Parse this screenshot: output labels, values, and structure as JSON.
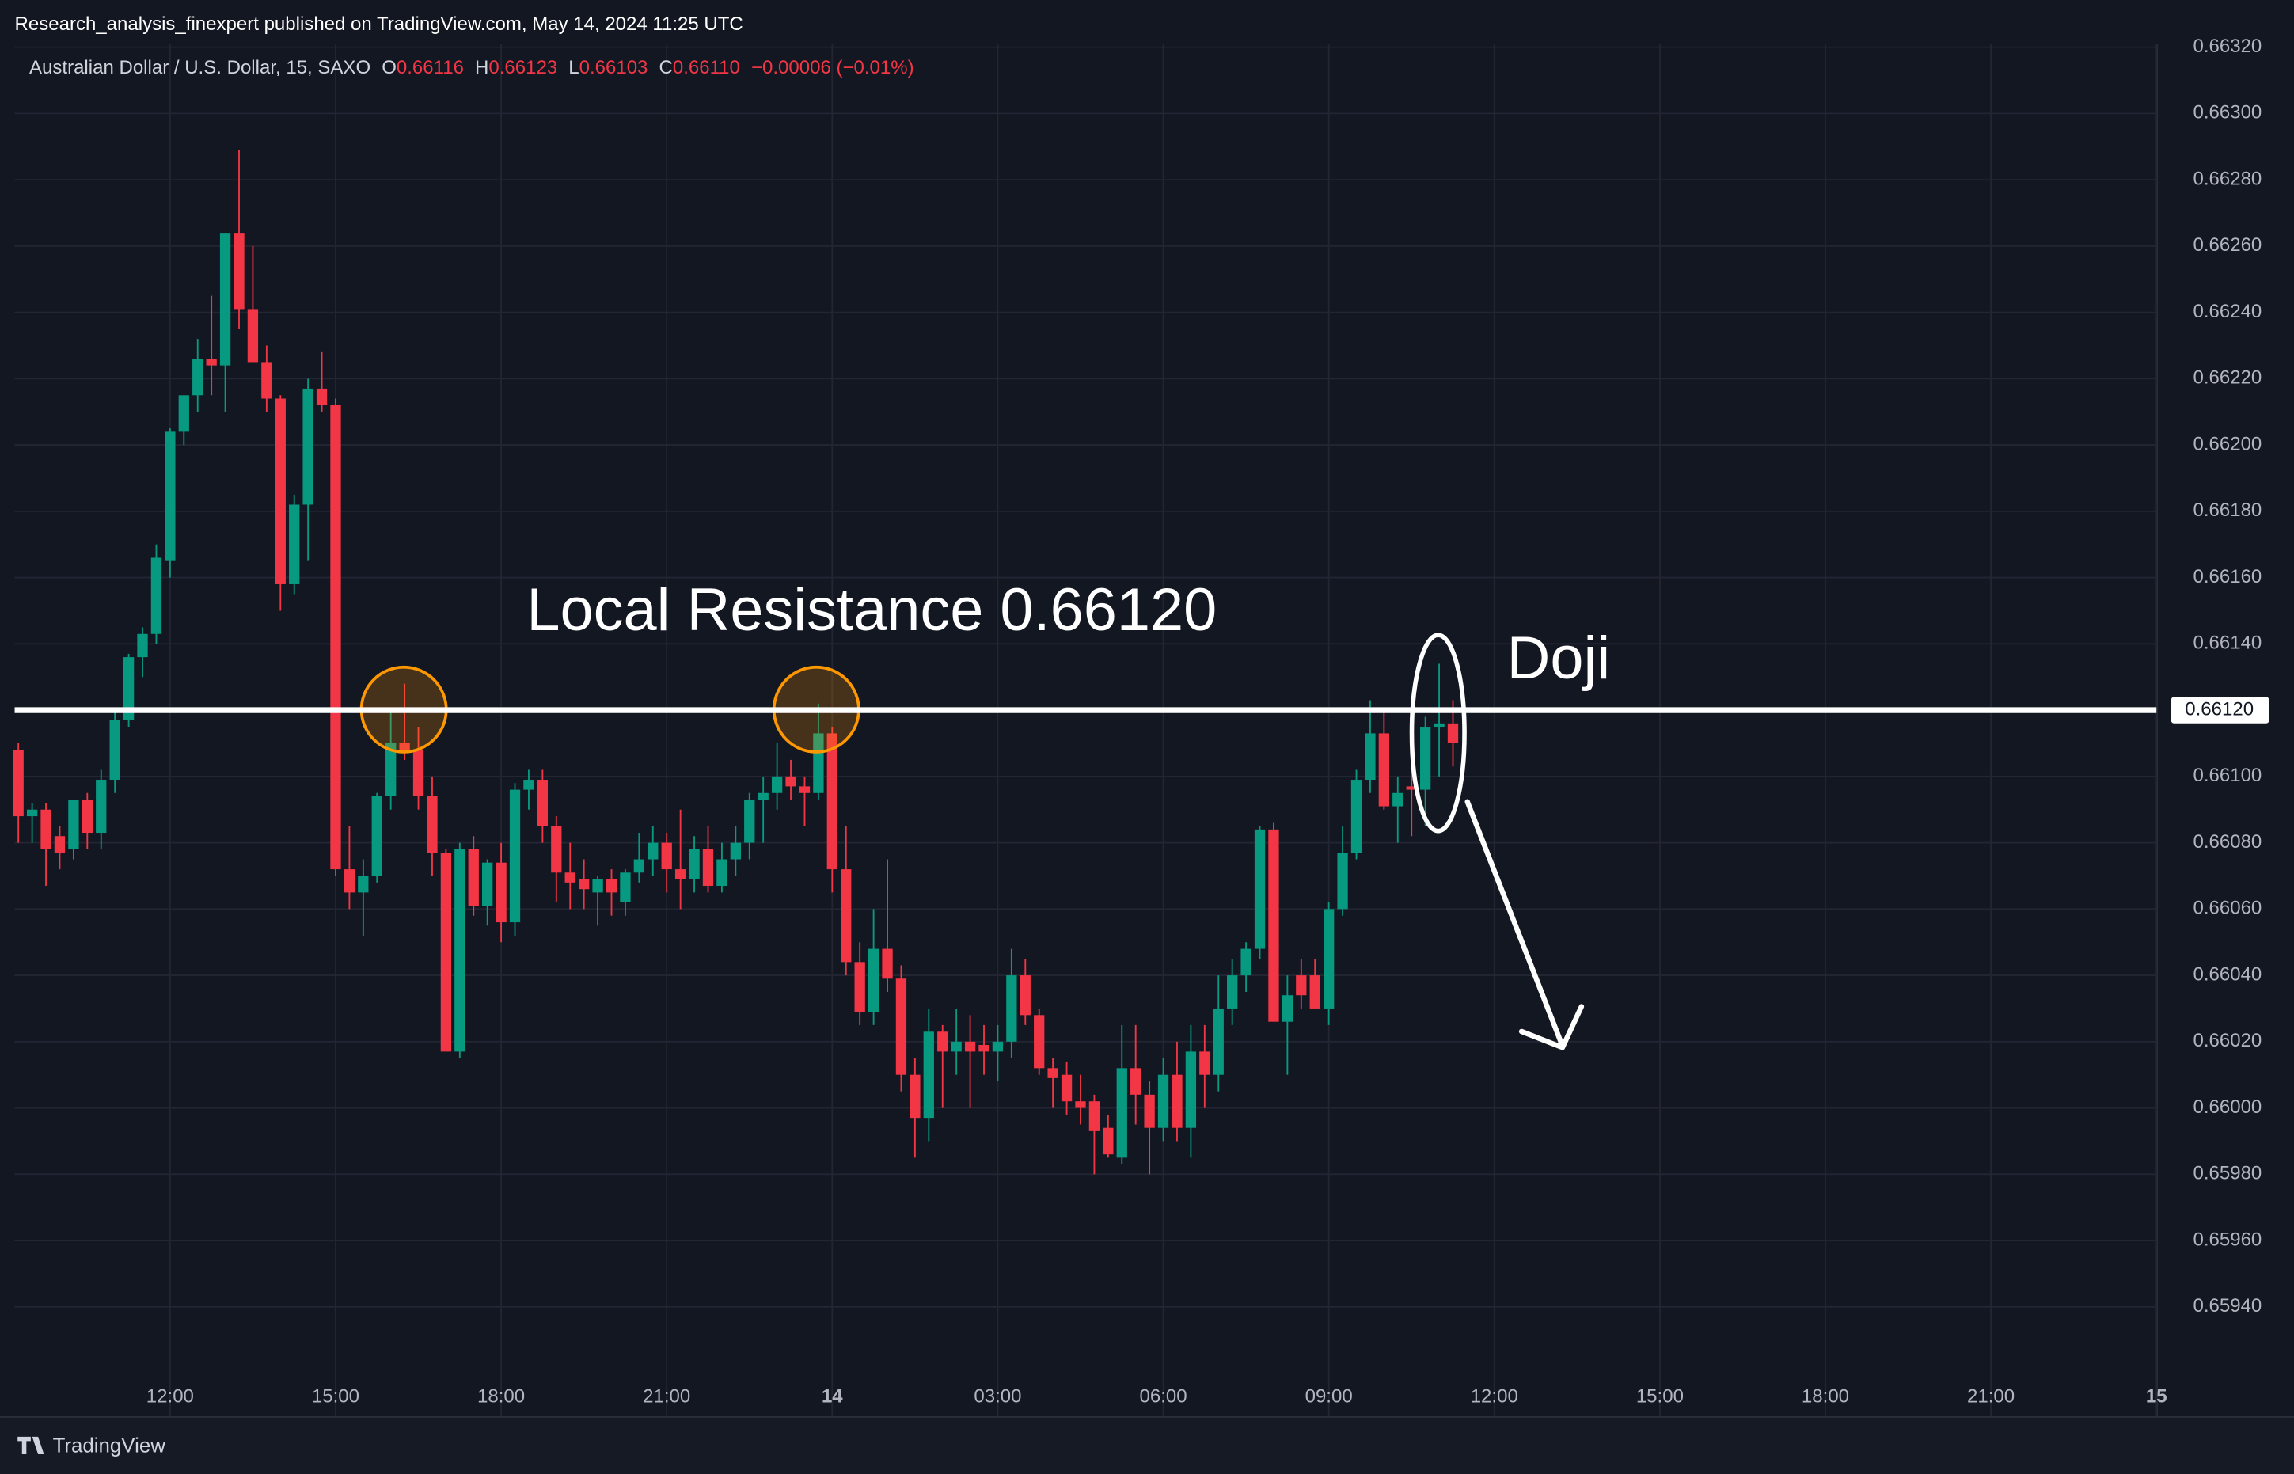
{
  "header": {
    "published": "Research_analysis_finexpert published on TradingView.com, May 14, 2024 11:25 UTC"
  },
  "legend": {
    "symbol": "Australian Dollar / U.S. Dollar, 15, SAXO",
    "open_label": "O",
    "open": "0.66116",
    "high_label": "H",
    "high": "0.66123",
    "low_label": "L",
    "low": "0.66103",
    "close_label": "C",
    "close": "0.66110",
    "change": "−0.00006 (−0.01%)"
  },
  "footer": {
    "brand": "TradingView"
  },
  "chart_data": {
    "type": "candlestick",
    "up_color": "#089981",
    "down_color": "#f23645",
    "grid": true,
    "x": [
      "13 09:15",
      "13 09:30",
      "13 09:45",
      "13 10:00",
      "13 10:15",
      "13 10:30",
      "13 10:45",
      "13 11:00",
      "13 11:15",
      "13 11:30",
      "13 11:45",
      "13 12:00",
      "13 12:15",
      "13 12:30",
      "13 12:45",
      "13 13:00",
      "13 13:15",
      "13 13:30",
      "13 13:45",
      "13 14:00",
      "13 14:15",
      "13 14:30",
      "13 14:45",
      "13 15:00",
      "13 15:15",
      "13 15:30",
      "13 15:45",
      "13 16:00",
      "13 16:15",
      "13 16:30",
      "13 16:45",
      "13 17:00",
      "13 17:15",
      "13 17:30",
      "13 17:45",
      "13 18:00",
      "13 18:15",
      "13 18:30",
      "13 18:45",
      "13 19:00",
      "13 19:15",
      "13 19:30",
      "13 19:45",
      "13 20:00",
      "13 20:15",
      "13 20:30",
      "13 20:45",
      "13 21:00",
      "13 21:15",
      "13 21:30",
      "13 21:45",
      "13 22:00",
      "13 22:15",
      "13 22:30",
      "13 22:45",
      "13 23:00",
      "13 23:15",
      "13 23:30",
      "13 23:45",
      "14 00:00",
      "14 00:15",
      "14 00:30",
      "14 00:45",
      "14 01:00",
      "14 01:15",
      "14 01:30",
      "14 01:45",
      "14 02:00",
      "14 02:15",
      "14 02:30",
      "14 02:45",
      "14 03:00",
      "14 03:15",
      "14 03:30",
      "14 03:45",
      "14 04:00",
      "14 04:15",
      "14 04:30",
      "14 04:45",
      "14 05:00",
      "14 05:15",
      "14 05:30",
      "14 05:45",
      "14 06:00",
      "14 06:15",
      "14 06:30",
      "14 06:45",
      "14 07:00",
      "14 07:15",
      "14 07:30",
      "14 07:45",
      "14 08:00",
      "14 08:15",
      "14 08:30",
      "14 08:45",
      "14 09:00",
      "14 09:15",
      "14 09:30",
      "14 09:45",
      "14 10:00",
      "14 10:15",
      "14 10:30",
      "14 10:45",
      "14 11:00",
      "14 11:15"
    ],
    "open": [
      0.66108,
      0.66088,
      0.6609,
      0.66082,
      0.66078,
      0.66093,
      0.66083,
      0.66099,
      0.66117,
      0.66136,
      0.66143,
      0.66165,
      0.66204,
      0.66215,
      0.66226,
      0.66224,
      0.66264,
      0.66241,
      0.66225,
      0.66214,
      0.66158,
      0.66182,
      0.66217,
      0.66212,
      0.66072,
      0.66065,
      0.6607,
      0.66094,
      0.6611,
      0.66108,
      0.66094,
      0.66077,
      0.66017,
      0.66078,
      0.66061,
      0.66074,
      0.66056,
      0.66096,
      0.66099,
      0.66085,
      0.66071,
      0.66069,
      0.66065,
      0.66069,
      0.66062,
      0.66071,
      0.66075,
      0.6608,
      0.66072,
      0.66069,
      0.66078,
      0.66067,
      0.66075,
      0.6608,
      0.66093,
      0.66095,
      0.661,
      0.66097,
      0.66095,
      0.66113,
      0.66072,
      0.66044,
      0.66029,
      0.66048,
      0.66039,
      0.6601,
      0.65997,
      0.66023,
      0.66017,
      0.6602,
      0.66019,
      0.66017,
      0.6602,
      0.6604,
      0.66028,
      0.66012,
      0.6601,
      0.66002,
      0.66002,
      0.65994,
      0.65985,
      0.66012,
      0.66004,
      0.65994,
      0.6601,
      0.65994,
      0.66017,
      0.6601,
      0.6603,
      0.6604,
      0.66048,
      0.66084,
      0.66026,
      0.6604,
      0.6604,
      0.6603,
      0.6606,
      0.66077,
      0.66099,
      0.66113,
      0.66091,
      0.66097,
      0.66096,
      0.66115,
      0.66116
    ],
    "high": [
      0.6611,
      0.66092,
      0.66092,
      0.66085,
      0.66093,
      0.66095,
      0.66102,
      0.6612,
      0.66137,
      0.66145,
      0.6617,
      0.66205,
      0.66215,
      0.66232,
      0.66245,
      0.66264,
      0.66289,
      0.6626,
      0.6623,
      0.66215,
      0.66185,
      0.6622,
      0.66228,
      0.66214,
      0.66085,
      0.66075,
      0.66095,
      0.6612,
      0.66128,
      0.66115,
      0.661,
      0.66078,
      0.6608,
      0.66082,
      0.66075,
      0.6608,
      0.66098,
      0.66102,
      0.66102,
      0.66088,
      0.6608,
      0.66075,
      0.6607,
      0.66072,
      0.66072,
      0.66083,
      0.66085,
      0.66083,
      0.6609,
      0.66082,
      0.66085,
      0.6608,
      0.66085,
      0.66095,
      0.661,
      0.6611,
      0.66105,
      0.661,
      0.66122,
      0.66115,
      0.66085,
      0.6605,
      0.6606,
      0.66075,
      0.66043,
      0.66015,
      0.6603,
      0.66025,
      0.6603,
      0.66028,
      0.66025,
      0.66025,
      0.66048,
      0.66045,
      0.6603,
      0.66015,
      0.66014,
      0.6601,
      0.66004,
      0.65998,
      0.66025,
      0.66025,
      0.66008,
      0.66015,
      0.6602,
      0.66025,
      0.66025,
      0.6604,
      0.66045,
      0.6605,
      0.66085,
      0.66086,
      0.6604,
      0.66045,
      0.66045,
      0.66062,
      0.66085,
      0.66102,
      0.66123,
      0.6612,
      0.661,
      0.66105,
      0.66118,
      0.66134,
      0.66123
    ],
    "low": [
      0.6608,
      0.6608,
      0.66067,
      0.66072,
      0.66075,
      0.66078,
      0.66078,
      0.66095,
      0.66115,
      0.6613,
      0.6614,
      0.6616,
      0.662,
      0.6621,
      0.66215,
      0.6621,
      0.66235,
      0.66225,
      0.6621,
      0.6615,
      0.66155,
      0.66165,
      0.6621,
      0.6607,
      0.6606,
      0.66052,
      0.66068,
      0.6609,
      0.66105,
      0.6609,
      0.6607,
      0.66018,
      0.66015,
      0.66058,
      0.66055,
      0.6605,
      0.66052,
      0.6609,
      0.6608,
      0.66062,
      0.6606,
      0.6606,
      0.66055,
      0.66058,
      0.66058,
      0.66068,
      0.6607,
      0.66065,
      0.6606,
      0.66065,
      0.66065,
      0.66065,
      0.6607,
      0.66075,
      0.6608,
      0.6609,
      0.66093,
      0.66085,
      0.66093,
      0.66065,
      0.6604,
      0.66025,
      0.66025,
      0.66035,
      0.66005,
      0.65985,
      0.6599,
      0.66,
      0.6601,
      0.66,
      0.6601,
      0.66008,
      0.66015,
      0.66025,
      0.6601,
      0.66,
      0.65998,
      0.65995,
      0.6598,
      0.65985,
      0.65983,
      0.65995,
      0.6598,
      0.6599,
      0.6599,
      0.65985,
      0.66,
      0.66005,
      0.66025,
      0.66035,
      0.66045,
      0.66028,
      0.6601,
      0.6603,
      0.6603,
      0.66025,
      0.66058,
      0.66075,
      0.66095,
      0.6609,
      0.6608,
      0.66082,
      0.66085,
      0.661,
      0.66103
    ],
    "close": [
      0.66088,
      0.6609,
      0.66078,
      0.66077,
      0.66093,
      0.66083,
      0.66099,
      0.66117,
      0.66136,
      0.66143,
      0.66166,
      0.66204,
      0.66215,
      0.66226,
      0.66224,
      0.66264,
      0.66241,
      0.66225,
      0.66214,
      0.66158,
      0.66182,
      0.66217,
      0.66212,
      0.66072,
      0.66065,
      0.6607,
      0.66094,
      0.6611,
      0.66108,
      0.66094,
      0.66077,
      0.66017,
      0.66078,
      0.66061,
      0.66074,
      0.66056,
      0.66096,
      0.66099,
      0.66085,
      0.66071,
      0.66068,
      0.66066,
      0.66069,
      0.66065,
      0.66071,
      0.66075,
      0.6608,
      0.66072,
      0.66069,
      0.66078,
      0.66067,
      0.66075,
      0.6608,
      0.66093,
      0.66095,
      0.661,
      0.66097,
      0.66095,
      0.66113,
      0.66072,
      0.66044,
      0.66029,
      0.66048,
      0.66039,
      0.6601,
      0.65997,
      0.66023,
      0.66017,
      0.6602,
      0.66017,
      0.66017,
      0.6602,
      0.6604,
      0.66028,
      0.66012,
      0.66009,
      0.66002,
      0.66,
      0.65993,
      0.65986,
      0.66012,
      0.66004,
      0.65994,
      0.6601,
      0.65994,
      0.66017,
      0.6601,
      0.6603,
      0.6604,
      0.66048,
      0.66084,
      0.66026,
      0.66034,
      0.66034,
      0.6603,
      0.6606,
      0.66077,
      0.66099,
      0.66113,
      0.66091,
      0.66095,
      0.66096,
      0.66115,
      0.66116,
      0.6611
    ],
    "xlim": [
      "13 09:11",
      "15 00:00"
    ],
    "xticks": [
      {
        "value": "13 12:00",
        "label": "12:00"
      },
      {
        "value": "13 15:00",
        "label": "15:00"
      },
      {
        "value": "13 18:00",
        "label": "18:00"
      },
      {
        "value": "13 21:00",
        "label": "21:00"
      },
      {
        "value": "14 00:00",
        "label": "14"
      },
      {
        "value": "14 03:00",
        "label": "03:00"
      },
      {
        "value": "14 06:00",
        "label": "06:00"
      },
      {
        "value": "14 09:00",
        "label": "09:00"
      },
      {
        "value": "14 12:00",
        "label": "12:00"
      },
      {
        "value": "14 15:00",
        "label": "15:00"
      },
      {
        "value": "14 18:00",
        "label": "18:00"
      },
      {
        "value": "14 21:00",
        "label": "21:00"
      },
      {
        "value": "15 00:00",
        "label": "15"
      }
    ],
    "ylim": [
      0.65907,
      0.66321
    ],
    "yticks": [
      {
        "value": 0.6632,
        "label": "0.66320"
      },
      {
        "value": 0.663,
        "label": "0.66300"
      },
      {
        "value": 0.6628,
        "label": "0.66280"
      },
      {
        "value": 0.6626,
        "label": "0.66260"
      },
      {
        "value": 0.6624,
        "label": "0.66240"
      },
      {
        "value": 0.6622,
        "label": "0.66220"
      },
      {
        "value": 0.662,
        "label": "0.66200"
      },
      {
        "value": 0.6618,
        "label": "0.66180"
      },
      {
        "value": 0.6616,
        "label": "0.66160"
      },
      {
        "value": 0.6614,
        "label": "0.66140"
      },
      {
        "value": 0.661,
        "label": "0.66100"
      },
      {
        "value": 0.6608,
        "label": "0.66080"
      },
      {
        "value": 0.6606,
        "label": "0.66060"
      },
      {
        "value": 0.6604,
        "label": "0.66040"
      },
      {
        "value": 0.6602,
        "label": "0.66020"
      },
      {
        "value": 0.66,
        "label": "0.66000"
      },
      {
        "value": 0.6598,
        "label": "0.65980"
      },
      {
        "value": 0.6596,
        "label": "0.65960"
      },
      {
        "value": 0.6594,
        "label": "0.65940"
      }
    ],
    "price_line": {
      "value": 0.6612,
      "label": "0.66120"
    },
    "annotations": {
      "resistance": "Local Resistance 0.66120",
      "doji": "Doji"
    }
  }
}
